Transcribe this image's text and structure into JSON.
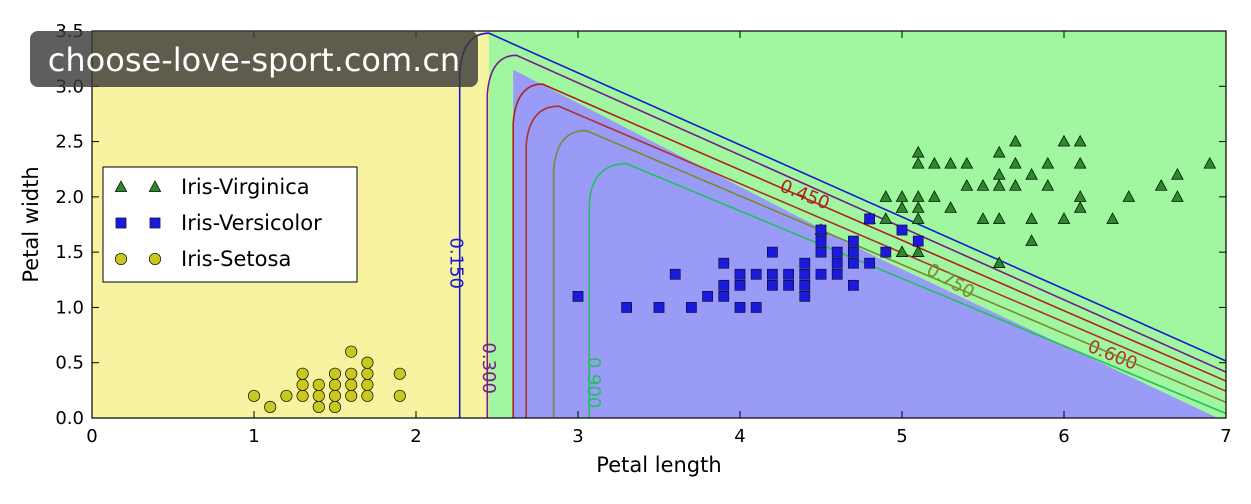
{
  "chart_data": {
    "type": "scatter",
    "title": "",
    "xlabel": "Petal length",
    "ylabel": "Petal width",
    "xlim": [
      0,
      7
    ],
    "ylim": [
      0,
      3.5
    ],
    "xticks": [
      0,
      1,
      2,
      3,
      4,
      5,
      6,
      7
    ],
    "yticks": [
      0.0,
      0.5,
      1.0,
      1.5,
      2.0,
      2.5,
      3.0,
      3.5
    ],
    "xtick_labels": [
      "0",
      "1",
      "2",
      "3",
      "4",
      "5",
      "6",
      "7"
    ],
    "ytick_labels": [
      "0.0",
      "0.5",
      "1.0",
      "1.5",
      "2.0",
      "2.5",
      "3.0",
      "3.5"
    ],
    "grid": false,
    "legend_position": "center-left",
    "decision_regions": [
      {
        "class": "Iris-Setosa",
        "color": "#f7f3a1"
      },
      {
        "class": "Iris-Versicolor",
        "color": "#9a9af7"
      },
      {
        "class": "Iris-Virginica",
        "color": "#a0f7a0"
      }
    ],
    "contours": [
      {
        "label": "0.150",
        "color": "#1a1acc"
      },
      {
        "label": "0.300",
        "color": "#7a1a8c"
      },
      {
        "label": "0.450",
        "color": "#b02020"
      },
      {
        "label": "0.600",
        "color": "#b03030"
      },
      {
        "label": "0.750",
        "color": "#7a8a30"
      },
      {
        "label": "0.900",
        "color": "#22c060"
      }
    ],
    "series": [
      {
        "name": "Iris-Virginica",
        "marker": "triangle",
        "color": "#2a8a2a",
        "points": [
          [
            4.5,
            1.7
          ],
          [
            4.8,
            1.8
          ],
          [
            4.9,
            1.8
          ],
          [
            4.9,
            2.0
          ],
          [
            5.0,
            1.5
          ],
          [
            5.0,
            2.0
          ],
          [
            5.0,
            1.9
          ],
          [
            5.1,
            1.9
          ],
          [
            5.1,
            2.0
          ],
          [
            5.1,
            2.3
          ],
          [
            5.1,
            2.4
          ],
          [
            5.1,
            1.5
          ],
          [
            5.1,
            1.8
          ],
          [
            5.2,
            2.0
          ],
          [
            5.2,
            2.3
          ],
          [
            5.3,
            1.9
          ],
          [
            5.3,
            2.3
          ],
          [
            5.4,
            2.1
          ],
          [
            5.4,
            2.3
          ],
          [
            5.5,
            2.1
          ],
          [
            5.5,
            1.8
          ],
          [
            5.6,
            2.4
          ],
          [
            5.6,
            2.2
          ],
          [
            5.6,
            2.1
          ],
          [
            5.6,
            1.8
          ],
          [
            5.6,
            1.4
          ],
          [
            5.7,
            2.5
          ],
          [
            5.7,
            2.3
          ],
          [
            5.7,
            2.1
          ],
          [
            5.8,
            2.2
          ],
          [
            5.8,
            1.8
          ],
          [
            5.9,
            2.3
          ],
          [
            5.9,
            2.1
          ],
          [
            6.0,
            1.8
          ],
          [
            6.0,
            2.5
          ],
          [
            6.1,
            2.3
          ],
          [
            6.1,
            1.9
          ],
          [
            6.1,
            2.5
          ],
          [
            6.3,
            1.8
          ],
          [
            6.4,
            2.0
          ],
          [
            6.6,
            2.1
          ],
          [
            6.7,
            2.2
          ],
          [
            6.7,
            2.0
          ],
          [
            6.9,
            2.3
          ],
          [
            5.8,
            1.6
          ],
          [
            6.1,
            2.0
          ]
        ]
      },
      {
        "name": "Iris-Versicolor",
        "marker": "square",
        "color": "#1a1ad8",
        "points": [
          [
            3.0,
            1.1
          ],
          [
            3.3,
            1.0
          ],
          [
            3.5,
            1.0
          ],
          [
            3.6,
            1.3
          ],
          [
            3.7,
            1.0
          ],
          [
            3.8,
            1.1
          ],
          [
            3.9,
            1.1
          ],
          [
            3.9,
            1.2
          ],
          [
            3.9,
            1.4
          ],
          [
            4.0,
            1.0
          ],
          [
            4.0,
            1.2
          ],
          [
            4.0,
            1.3
          ],
          [
            4.1,
            1.0
          ],
          [
            4.1,
            1.3
          ],
          [
            4.2,
            1.2
          ],
          [
            4.2,
            1.3
          ],
          [
            4.2,
            1.5
          ],
          [
            4.3,
            1.3
          ],
          [
            4.4,
            1.2
          ],
          [
            4.4,
            1.3
          ],
          [
            4.4,
            1.4
          ],
          [
            4.5,
            1.3
          ],
          [
            4.5,
            1.5
          ],
          [
            4.5,
            1.6
          ],
          [
            4.5,
            1.7
          ],
          [
            4.6,
            1.3
          ],
          [
            4.6,
            1.4
          ],
          [
            4.6,
            1.5
          ],
          [
            4.7,
            1.2
          ],
          [
            4.7,
            1.4
          ],
          [
            4.7,
            1.5
          ],
          [
            4.7,
            1.6
          ],
          [
            4.8,
            1.4
          ],
          [
            4.8,
            1.8
          ],
          [
            4.9,
            1.5
          ],
          [
            5.0,
            1.7
          ],
          [
            5.1,
            1.6
          ],
          [
            4.4,
            1.1
          ],
          [
            4.3,
            1.2
          ]
        ]
      },
      {
        "name": "Iris-Setosa",
        "marker": "circle",
        "color": "#c8c81e",
        "points": [
          [
            1.0,
            0.2
          ],
          [
            1.1,
            0.1
          ],
          [
            1.2,
            0.2
          ],
          [
            1.3,
            0.2
          ],
          [
            1.3,
            0.3
          ],
          [
            1.3,
            0.4
          ],
          [
            1.4,
            0.1
          ],
          [
            1.4,
            0.2
          ],
          [
            1.4,
            0.3
          ],
          [
            1.5,
            0.1
          ],
          [
            1.5,
            0.2
          ],
          [
            1.5,
            0.3
          ],
          [
            1.5,
            0.4
          ],
          [
            1.6,
            0.2
          ],
          [
            1.6,
            0.4
          ],
          [
            1.6,
            0.6
          ],
          [
            1.7,
            0.2
          ],
          [
            1.7,
            0.3
          ],
          [
            1.7,
            0.4
          ],
          [
            1.7,
            0.5
          ],
          [
            1.9,
            0.2
          ],
          [
            1.9,
            0.4
          ],
          [
            1.6,
            0.3
          ]
        ]
      }
    ]
  },
  "watermark": {
    "text": "choose-love-sport.com.cn"
  }
}
